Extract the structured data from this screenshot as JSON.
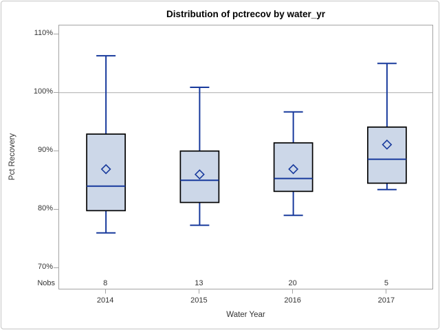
{
  "title": "Distribution of pctrecov by water_yr",
  "y_axis": {
    "label": "Pct Recovery",
    "ticks": [
      {
        "value": 110,
        "label": "110%"
      },
      {
        "value": 100,
        "label": "100%"
      },
      {
        "value": 90,
        "label": "90%"
      },
      {
        "value": 80,
        "label": "80%"
      },
      {
        "value": 70,
        "label": "70%"
      }
    ]
  },
  "x_axis": {
    "label": "Water Year",
    "categories": [
      "2014",
      "2015",
      "2016",
      "2017"
    ]
  },
  "nobs": {
    "label": "Nobs",
    "values": [
      "8",
      "13",
      "20",
      "5"
    ]
  },
  "colors": {
    "box_fill": "#ccd7e8",
    "box_border": "#000000",
    "line_blue": "#17399c",
    "frame_gray": "#a3a3a3",
    "reference_line_gray": "#ababab",
    "text": "#333333"
  },
  "chart_data": {
    "type": "box",
    "title": "Distribution of pctrecov by water_yr",
    "xlabel": "Water Year",
    "ylabel": "Pct Recovery",
    "y_ticks_pct": [
      70,
      80,
      90,
      100,
      110
    ],
    "ylim": [
      67.5,
      112.5
    ],
    "reference_line": 100,
    "grid": "single horizontal reference line at 100%",
    "categories": [
      "2014",
      "2015",
      "2016",
      "2017"
    ],
    "series": [
      {
        "category": "2014",
        "n": 8,
        "whisker_low": 76.0,
        "q1": 79.8,
        "median": 84.0,
        "q3": 92.9,
        "whisker_high": 106.3,
        "mean": 86.9
      },
      {
        "category": "2015",
        "n": 13,
        "whisker_low": 77.3,
        "q1": 81.2,
        "median": 85.0,
        "q3": 90.0,
        "whisker_high": 100.9,
        "mean": 86.0
      },
      {
        "category": "2016",
        "n": 20,
        "whisker_low": 79.0,
        "q1": 83.1,
        "median": 85.3,
        "q3": 91.4,
        "whisker_high": 96.7,
        "mean": 86.9
      },
      {
        "category": "2017",
        "n": 5,
        "whisker_low": 83.4,
        "q1": 84.5,
        "median": 88.6,
        "q3": 94.1,
        "whisker_high": 105.0,
        "mean": 91.1
      }
    ]
  }
}
